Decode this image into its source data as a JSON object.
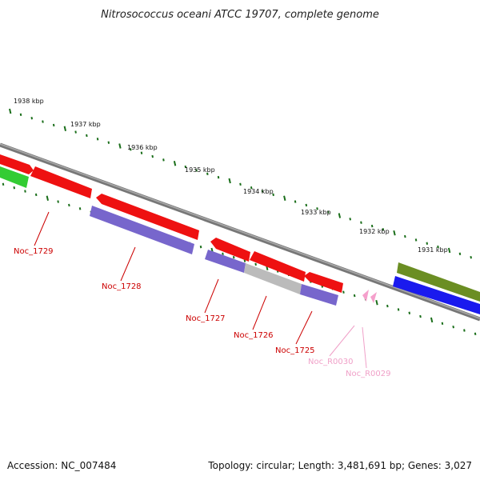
{
  "title": "Nitrosococcus oceani ATCC 19707, complete genome",
  "ticks": [
    {
      "label": "1938 kbp"
    },
    {
      "label": "1937 kbp"
    },
    {
      "label": "1936 kbp"
    },
    {
      "label": "1935 kbp"
    },
    {
      "label": "1934 kbp"
    },
    {
      "label": "1933 kbp"
    },
    {
      "label": "1932 kbp"
    },
    {
      "label": "1931 kbp"
    }
  ],
  "gene_labels": [
    {
      "id": "noc1729",
      "text": "Noc_1729",
      "color": "#cc0000"
    },
    {
      "id": "noc1728",
      "text": "Noc_1728",
      "color": "#cc0000"
    },
    {
      "id": "noc1727",
      "text": "Noc_1727",
      "color": "#cc0000"
    },
    {
      "id": "noc1726",
      "text": "Noc_1726",
      "color": "#cc0000"
    },
    {
      "id": "noc1725",
      "text": "Noc_1725",
      "color": "#cc0000"
    },
    {
      "id": "nocr0030",
      "text": "Noc_R0030",
      "color": "#f0a0c8"
    },
    {
      "id": "nocr0029",
      "text": "Noc_R0029",
      "color": "#f0a0c8"
    }
  ],
  "colors": {
    "forward_cds": "#ee1111",
    "reverse_cds": "#7766cc",
    "pseudo": "#bbbbbb",
    "green_feature": "#33cc33",
    "olive_feature": "#6b8e23",
    "blue_feature": "#1a1aee",
    "rna": "#f5a0cc",
    "backbone": "#777777",
    "tick": "#1a6e1a"
  },
  "footer": {
    "accession": "Accession: NC_007484",
    "summary": "Topology: circular; Length: 3,481,691 bp; Genes: 3,027"
  }
}
